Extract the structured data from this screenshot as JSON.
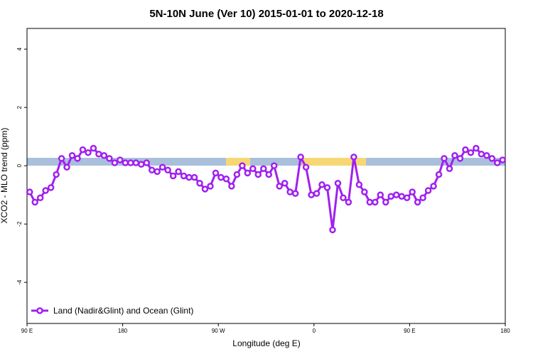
{
  "chart_data": {
    "type": "line",
    "title": "5N-10N June (Ver 10)   2015-01-01 to 2020-12-18",
    "x_label": "Longitude (deg E)",
    "y_label": "XCO2 - MLO trend (ppm)",
    "xlim": [
      90,
      540
    ],
    "ylim": [
      -5.41,
      4.71
    ],
    "xticks": [
      {
        "value": 90,
        "label": "90 E"
      },
      {
        "value": 180,
        "label": "180"
      },
      {
        "value": 270,
        "label": "90 W"
      },
      {
        "value": 360,
        "label": "0"
      },
      {
        "value": 450,
        "label": "90 E"
      },
      {
        "value": 540,
        "label": "180"
      }
    ],
    "yticks": [
      -4,
      -2,
      0,
      2,
      4
    ],
    "x": [
      92.5,
      97.5,
      102.5,
      107.5,
      112.5,
      117.5,
      122.5,
      127.5,
      132.5,
      137.5,
      142.5,
      147.5,
      152.5,
      157.5,
      162.5,
      167.5,
      172.5,
      177.5,
      182.5,
      187.5,
      192.5,
      197.5,
      202.5,
      207.5,
      212.5,
      217.5,
      222.5,
      227.5,
      232.5,
      237.5,
      242.5,
      247.5,
      252.5,
      257.5,
      262.5,
      267.5,
      272.5,
      277.5,
      282.5,
      287.5,
      292.5,
      297.5,
      302.5,
      307.5,
      312.5,
      317.5,
      322.5,
      327.5,
      332.5,
      337.5,
      342.5,
      347.5,
      352.5,
      357.5,
      362.5,
      367.5,
      372.5,
      377.5,
      382.5,
      387.5,
      392.5,
      397.5,
      402.5,
      407.5,
      412.5,
      417.5,
      422.5,
      427.5,
      432.5,
      437.5,
      442.5,
      447.5,
      452.5,
      457.5,
      462.5,
      467.5,
      472.5,
      477.5,
      482.5,
      487.5,
      492.5,
      497.5,
      502.5,
      507.5,
      512.5,
      517.5,
      522.5,
      527.5,
      532.5,
      537.5
    ],
    "series": [
      {
        "name": "Land (Nadir&Glint) and Ocean (Glint)",
        "color": "#a020f0",
        "values": [
          -0.9,
          -1.25,
          -1.1,
          -0.85,
          -0.75,
          -0.3,
          0.25,
          -0.05,
          0.35,
          0.25,
          0.55,
          0.45,
          0.6,
          0.4,
          0.35,
          0.25,
          0.1,
          0.2,
          0.1,
          0.1,
          0.1,
          0.05,
          0.1,
          -0.15,
          -0.2,
          -0.05,
          -0.15,
          -0.35,
          -0.2,
          -0.35,
          -0.4,
          -0.4,
          -0.6,
          -0.8,
          -0.7,
          -0.25,
          -0.4,
          -0.45,
          -0.7,
          -0.3,
          0,
          -0.25,
          -0.1,
          -0.3,
          -0.1,
          -0.3,
          0,
          -0.7,
          -0.6,
          -0.9,
          -0.95,
          0.3,
          -0.05,
          -1.0,
          -0.95,
          -0.65,
          -0.75,
          -2.2,
          -0.6,
          -1.1,
          -1.25,
          0.3,
          -0.65,
          -0.9,
          -1.25,
          -1.25,
          -1.0,
          -1.25,
          -1.05,
          -1.0,
          -1.05,
          -1.1,
          -0.9,
          -1.25,
          -1.1,
          -0.85,
          -0.7,
          -0.3,
          0.25,
          -0.1,
          0.35,
          0.25,
          0.55,
          0.45,
          0.6,
          0.4,
          0.35,
          0.25,
          0.1,
          0.2
        ]
      }
    ],
    "legend": "bottom-left"
  }
}
